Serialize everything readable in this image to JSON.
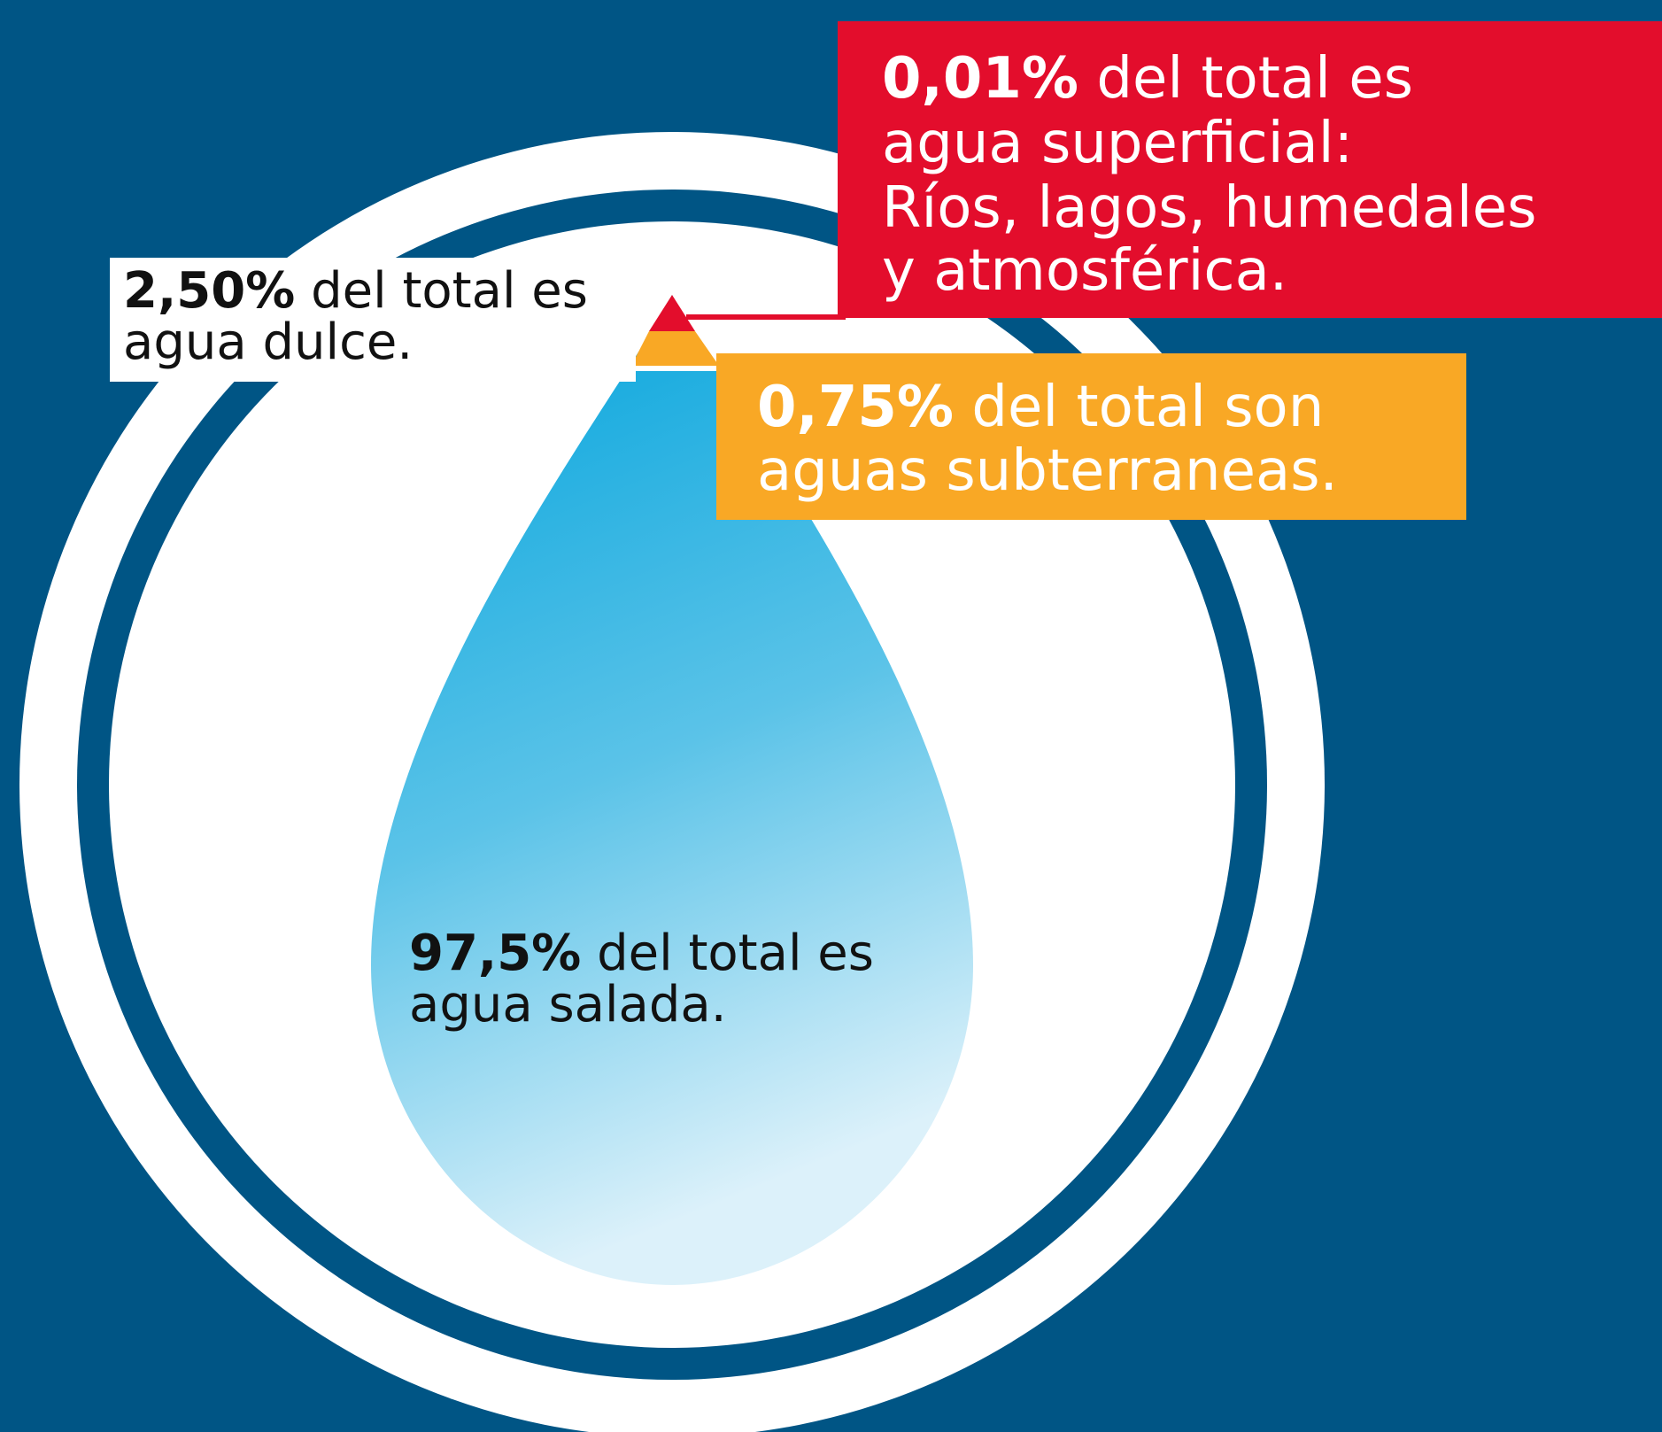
{
  "callouts": {
    "superficial": {
      "percent": "0,01%",
      "lines": [
        "del total es",
        "agua superficial:",
        "Ríos, lagos, humedales",
        "y atmosférica."
      ]
    },
    "subterranea": {
      "percent": "0,75%",
      "lines": [
        "del total son",
        "aguas subterraneas."
      ]
    },
    "dulce": {
      "percent": "2,50%",
      "lines": [
        "del total es",
        "agua dulce."
      ]
    },
    "salada": {
      "percent": "97,5%",
      "lines": [
        "del total es",
        "agua salada."
      ]
    }
  }
}
